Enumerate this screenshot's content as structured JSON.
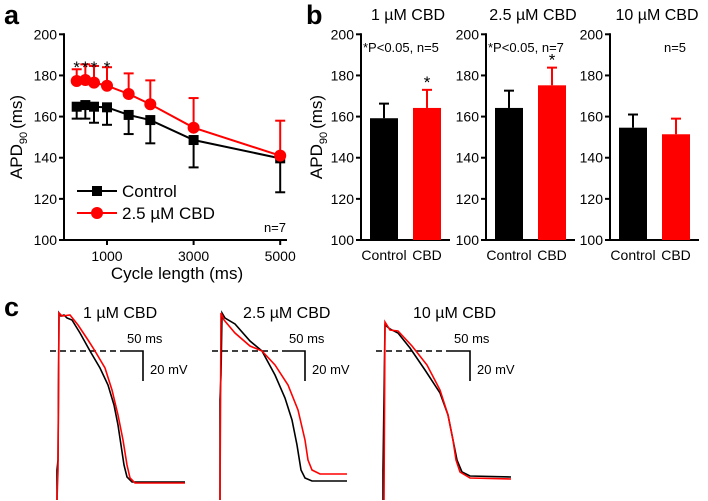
{
  "colors": {
    "control": "#000000",
    "cbd": "#ff0000"
  },
  "chart_data": [
    {
      "panel": "a",
      "type": "line",
      "xlabel": "Cycle length (ms)",
      "ylabel_main": "APD",
      "ylabel_sub": "90",
      "ylabel_unit": "(ms)",
      "xlim": [
        0,
        5300
      ],
      "ylim": [
        100,
        200
      ],
      "xticks": [
        1000,
        3000,
        5000
      ],
      "yticks": [
        100,
        120,
        140,
        160,
        180,
        200
      ],
      "x": [
        300,
        500,
        700,
        1000,
        1500,
        2000,
        3000,
        5000
      ],
      "series": [
        {
          "name": "Control",
          "color": "#000000",
          "marker": "square",
          "values": [
            164.8,
            165.6,
            164.8,
            164.5,
            160.8,
            158.3,
            148.6,
            139.7
          ],
          "error": [
            5.8,
            6.6,
            7.8,
            8.5,
            9.3,
            11.3,
            13.3,
            16.5
          ]
        },
        {
          "name": "2.5 µM CBD",
          "color": "#ff0000",
          "marker": "circle",
          "values": [
            177.3,
            177.8,
            176.5,
            175.0,
            171.0,
            166.0,
            154.6,
            141.0
          ],
          "error": [
            5.7,
            7.6,
            8.1,
            9.0,
            10.0,
            11.6,
            14.4,
            17.0
          ]
        }
      ],
      "significance_marks": [
        "*",
        "*",
        "*",
        "*"
      ],
      "significance_x": [
        300,
        500,
        700,
        1000
      ],
      "annotation": "n=7",
      "legend_position": "bottom-left"
    },
    {
      "panel": "b",
      "type": "bar",
      "ylabel_main": "APD",
      "ylabel_sub": "90",
      "ylabel_unit": "(ms)",
      "ylim": [
        100,
        200
      ],
      "yticks": [
        100,
        120,
        140,
        160,
        180,
        200
      ],
      "categories": [
        "Control",
        "CBD"
      ],
      "groups": [
        {
          "title": "1 µM CBD",
          "annotation": "*P<0.05, n=5",
          "values": [
            159.2,
            164.2
          ],
          "error": [
            7.1,
            8.8
          ],
          "star": "*"
        },
        {
          "title": "2.5 µM CBD",
          "annotation": "*P<0.05, n=7",
          "values": [
            164.2,
            175.2
          ],
          "error": [
            8.4,
            8.6
          ],
          "star": "*"
        },
        {
          "title": "10 µM CBD",
          "annotation": "n=5",
          "values": [
            154.6,
            151.4
          ],
          "error": [
            6.4,
            7.6
          ],
          "star": ""
        }
      ]
    },
    {
      "panel": "c",
      "type": "line",
      "traces": [
        {
          "title": "1 µM CBD",
          "scale_time": "50 ms",
          "scale_voltage": "20 mV"
        },
        {
          "title": "2.5 µM CBD",
          "scale_time": "50 ms",
          "scale_voltage": "20 mV"
        },
        {
          "title": "10 µM CBD",
          "scale_time": "50 ms",
          "scale_voltage": "20 mV"
        }
      ]
    }
  ]
}
